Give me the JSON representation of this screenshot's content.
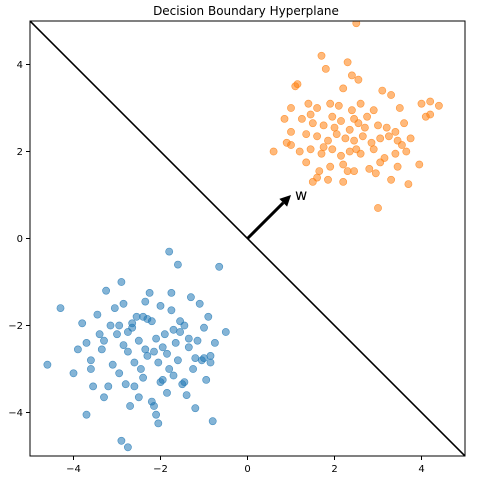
{
  "chart_data": {
    "type": "scatter",
    "title": "Decision Boundary Hyperplane",
    "xlabel": "",
    "ylabel": "",
    "xlim": [
      -5,
      5
    ],
    "ylim": [
      -5,
      5
    ],
    "x_ticks": [
      -4,
      -2,
      0,
      2,
      4
    ],
    "y_ticks": [
      -4,
      -2,
      0,
      2,
      4
    ],
    "grid": false,
    "colors": {
      "class_a": "#1f77b4",
      "class_b": "#ff7f0e",
      "boundary": "#000000",
      "vector": "#000000"
    },
    "boundary_line": {
      "x": [
        -5,
        5
      ],
      "y": [
        5,
        -5
      ]
    },
    "weight_vector": {
      "from": [
        0,
        0
      ],
      "to": [
        1,
        1
      ],
      "label": "w"
    },
    "series": [
      {
        "points": [
          [
            -4.3,
            -1.6
          ],
          [
            -4.6,
            -2.9
          ],
          [
            -4.0,
            -3.1
          ],
          [
            -3.8,
            -1.95
          ],
          [
            -3.7,
            -2.4
          ],
          [
            -3.6,
            -2.8
          ],
          [
            -3.55,
            -3.4
          ],
          [
            -3.45,
            -1.75
          ],
          [
            -3.4,
            -2.2
          ],
          [
            -3.35,
            -2.55
          ],
          [
            -3.3,
            -3.65
          ],
          [
            -3.3,
            -2.35
          ],
          [
            -3.2,
            -3.4
          ],
          [
            -3.15,
            -2.0
          ],
          [
            -3.1,
            -2.9
          ],
          [
            -3.05,
            -1.6
          ],
          [
            -3.0,
            -2.2
          ],
          [
            -2.95,
            -3.1
          ],
          [
            -2.9,
            -1.0
          ],
          [
            -2.85,
            -1.5
          ],
          [
            -2.85,
            -2.45
          ],
          [
            -2.8,
            -3.35
          ],
          [
            -2.75,
            -2.6
          ],
          [
            -2.75,
            -2.15
          ],
          [
            -2.7,
            -3.85
          ],
          [
            -2.65,
            -1.95
          ],
          [
            -2.6,
            -2.85
          ],
          [
            -2.6,
            -3.4
          ],
          [
            -2.55,
            -1.8
          ],
          [
            -2.5,
            -2.35
          ],
          [
            -2.45,
            -3.0
          ],
          [
            -2.4,
            -3.2
          ],
          [
            -2.35,
            -2.55
          ],
          [
            -2.35,
            -1.45
          ],
          [
            -2.3,
            -2.7
          ],
          [
            -2.25,
            -1.25
          ],
          [
            -2.2,
            -1.9
          ],
          [
            -2.2,
            -3.75
          ],
          [
            -2.15,
            -2.6
          ],
          [
            -2.1,
            -4.05
          ],
          [
            -2.1,
            -2.3
          ],
          [
            -2.05,
            -2.85
          ],
          [
            -2.0,
            -1.55
          ],
          [
            -2.0,
            -3.3
          ],
          [
            -1.95,
            -2.5
          ],
          [
            -1.9,
            -2.2
          ],
          [
            -1.85,
            -2.65
          ],
          [
            -1.8,
            -3.0
          ],
          [
            -1.8,
            -0.3
          ],
          [
            -1.75,
            -1.65
          ],
          [
            -1.7,
            -2.1
          ],
          [
            -1.7,
            -3.15
          ],
          [
            -1.65,
            -2.4
          ],
          [
            -1.6,
            -0.6
          ],
          [
            -1.6,
            -2.8
          ],
          [
            -1.55,
            -1.9
          ],
          [
            -1.5,
            -3.35
          ],
          [
            -1.45,
            -2.0
          ],
          [
            -1.4,
            -3.6
          ],
          [
            -1.35,
            -2.5
          ],
          [
            -1.3,
            -1.35
          ],
          [
            -1.25,
            -3.0
          ],
          [
            -1.2,
            -3.9
          ],
          [
            -1.15,
            -2.35
          ],
          [
            -1.1,
            -1.5
          ],
          [
            -1.05,
            -2.8
          ],
          [
            -1.0,
            -2.05
          ],
          [
            -0.95,
            -3.25
          ],
          [
            -0.9,
            -1.8
          ],
          [
            -0.85,
            -2.7
          ],
          [
            -0.8,
            -4.2
          ],
          [
            -0.75,
            -2.4
          ],
          [
            -0.65,
            -0.65
          ],
          [
            -0.5,
            -2.15
          ],
          [
            -3.7,
            -4.05
          ],
          [
            -3.25,
            -1.2
          ],
          [
            -2.9,
            -4.65
          ],
          [
            -2.75,
            -4.8
          ],
          [
            -2.5,
            -3.65
          ],
          [
            -2.3,
            -1.85
          ],
          [
            -2.05,
            -4.25
          ],
          [
            -1.85,
            -3.55
          ],
          [
            -1.55,
            -2.15
          ],
          [
            -1.45,
            -3.3
          ],
          [
            -1.2,
            -2.75
          ],
          [
            -0.85,
            -2.85
          ],
          [
            -1.95,
            -3.25
          ],
          [
            -2.15,
            -3.85
          ],
          [
            -3.9,
            -2.55
          ],
          [
            -3.6,
            -3.0
          ],
          [
            -2.95,
            -2.0
          ],
          [
            -2.65,
            -2.05
          ],
          [
            -2.4,
            -1.8
          ],
          [
            -1.75,
            -1.25
          ],
          [
            -1.35,
            -2.3
          ],
          [
            -1.0,
            -2.75
          ]
        ]
      },
      {
        "points": [
          [
            2.5,
            4.95
          ],
          [
            1.7,
            4.2
          ],
          [
            2.3,
            4.05
          ],
          [
            1.8,
            3.9
          ],
          [
            2.4,
            3.75
          ],
          [
            1.1,
            3.5
          ],
          [
            2.2,
            3.45
          ],
          [
            3.1,
            3.4
          ],
          [
            3.3,
            3.3
          ],
          [
            1.0,
            3.0
          ],
          [
            1.4,
            3.1
          ],
          [
            1.6,
            3.0
          ],
          [
            1.9,
            3.1
          ],
          [
            2.1,
            3.05
          ],
          [
            2.4,
            2.95
          ],
          [
            2.6,
            3.1
          ],
          [
            2.9,
            2.95
          ],
          [
            3.5,
            3.0
          ],
          [
            4.2,
            3.15
          ],
          [
            4.0,
            3.1
          ],
          [
            4.4,
            3.05
          ],
          [
            0.85,
            2.75
          ],
          [
            1.25,
            2.75
          ],
          [
            1.5,
            2.65
          ],
          [
            1.75,
            2.6
          ],
          [
            1.95,
            2.8
          ],
          [
            2.15,
            2.7
          ],
          [
            2.35,
            2.5
          ],
          [
            2.55,
            2.65
          ],
          [
            2.75,
            2.8
          ],
          [
            3.0,
            2.6
          ],
          [
            3.2,
            2.55
          ],
          [
            3.4,
            2.45
          ],
          [
            3.6,
            2.65
          ],
          [
            4.1,
            2.8
          ],
          [
            4.2,
            2.85
          ],
          [
            1.0,
            2.45
          ],
          [
            1.35,
            2.4
          ],
          [
            1.6,
            2.35
          ],
          [
            1.85,
            2.25
          ],
          [
            2.05,
            2.4
          ],
          [
            2.25,
            2.3
          ],
          [
            2.45,
            2.25
          ],
          [
            2.65,
            2.35
          ],
          [
            2.85,
            2.2
          ],
          [
            3.05,
            2.3
          ],
          [
            3.25,
            2.35
          ],
          [
            3.45,
            2.25
          ],
          [
            3.75,
            2.3
          ],
          [
            0.6,
            2.0
          ],
          [
            1.0,
            2.15
          ],
          [
            1.2,
            2.0
          ],
          [
            1.45,
            2.05
          ],
          [
            1.7,
            1.95
          ],
          [
            1.95,
            2.05
          ],
          [
            2.15,
            1.9
          ],
          [
            2.35,
            2.0
          ],
          [
            2.6,
            1.95
          ],
          [
            2.9,
            2.05
          ],
          [
            3.15,
            1.85
          ],
          [
            3.4,
            1.95
          ],
          [
            3.65,
            2.0
          ],
          [
            0.9,
            2.2
          ],
          [
            1.35,
            1.75
          ],
          [
            1.65,
            1.55
          ],
          [
            1.9,
            1.65
          ],
          [
            2.2,
            1.7
          ],
          [
            2.45,
            1.55
          ],
          [
            2.8,
            1.6
          ],
          [
            3.05,
            1.75
          ],
          [
            3.45,
            1.65
          ],
          [
            3.95,
            1.7
          ],
          [
            1.5,
            1.3
          ],
          [
            1.85,
            1.35
          ],
          [
            2.2,
            1.3
          ],
          [
            2.95,
            1.5
          ],
          [
            3.3,
            1.35
          ],
          [
            3.7,
            1.25
          ],
          [
            3.0,
            0.7
          ],
          [
            1.6,
            1.4
          ],
          [
            2.5,
            2.05
          ],
          [
            2.3,
            1.55
          ],
          [
            1.75,
            2.1
          ],
          [
            2.7,
            2.55
          ],
          [
            3.55,
            2.15
          ],
          [
            1.15,
            3.55
          ],
          [
            2.55,
            3.65
          ],
          [
            1.45,
            2.85
          ],
          [
            2.0,
            2.55
          ],
          [
            2.45,
            2.75
          ]
        ]
      }
    ]
  }
}
